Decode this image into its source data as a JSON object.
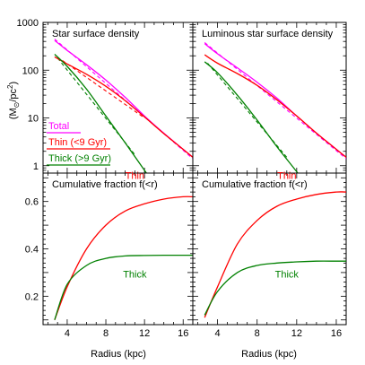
{
  "labels": {
    "y_axis_top": "(M",
    "y_axis_top_sub": "⊙",
    "y_axis_top_end": "/pc",
    "y_axis_top_sup": "2",
    "y_axis_top_close": ")",
    "x_axis": "Radius (kpc)"
  },
  "colors": {
    "total": "#ff00ff",
    "thin": "#ff0000",
    "thick": "#008000",
    "axis": "#000000"
  },
  "chart_data": [
    {
      "panel": "top-left",
      "type": "line",
      "title": "Star surface density",
      "xlim": [
        1.5,
        17.0
      ],
      "ylim": [
        0.7,
        1000
      ],
      "yscale": "log",
      "yticks": [
        1,
        10,
        100,
        1000
      ],
      "yticklabels": [
        "1",
        "10",
        "100",
        "1000"
      ],
      "xticks": [
        4,
        8,
        12,
        16
      ],
      "legend": {
        "placement": "left",
        "entries": [
          {
            "name": "Total",
            "color": "#ff00ff"
          },
          {
            "name": "Thin (<9 Gyr)",
            "color": "#ff0000"
          },
          {
            "name": "Thick (>9 Gyr)",
            "color": "#008000"
          }
        ]
      },
      "series": [
        {
          "key": "total",
          "color": "#ff00ff",
          "x": [
            2.7,
            4,
            6,
            8,
            10,
            12,
            14,
            16,
            17
          ],
          "y": [
            420,
            260,
            130,
            62,
            27,
            11,
            4.8,
            2.2,
            1.5
          ]
        },
        {
          "key": "thin",
          "color": "#ff0000",
          "x": [
            2.7,
            4,
            6,
            8,
            10,
            12,
            14,
            16,
            17
          ],
          "y": [
            190,
            135,
            82,
            46,
            23,
            10.5,
            4.7,
            2.2,
            1.5
          ]
        },
        {
          "key": "thick",
          "color": "#008000",
          "x": [
            2.7,
            4,
            6,
            8,
            10,
            12,
            13
          ],
          "y": [
            215,
            120,
            40,
            11,
            3,
            0.8,
            0.4
          ]
        }
      ],
      "dashed": [
        {
          "key": "total",
          "color": "#ff00ff",
          "x": [
            2.7,
            17
          ],
          "y": [
            450,
            1.4
          ]
        },
        {
          "key": "thin",
          "color": "#ff0000",
          "x": [
            3.5,
            12
          ],
          "y": [
            160,
            10
          ]
        },
        {
          "key": "thick",
          "color": "#008000",
          "x": [
            3,
            11
          ],
          "y": [
            180,
            1.7
          ]
        }
      ]
    },
    {
      "panel": "top-right",
      "type": "line",
      "title": "Luminous star surface density",
      "xlim": [
        1.5,
        17.0
      ],
      "ylim": [
        0.7,
        1000
      ],
      "yscale": "log",
      "xticks": [
        4,
        8,
        12,
        16
      ],
      "series": [
        {
          "key": "total",
          "color": "#ff00ff",
          "x": [
            2.7,
            4,
            6,
            8,
            10,
            12,
            14,
            16,
            17
          ],
          "y": [
            360,
            220,
            112,
            56,
            26,
            11,
            4.8,
            2.2,
            1.5
          ]
        },
        {
          "key": "thin",
          "color": "#ff0000",
          "x": [
            2.7,
            4,
            6,
            8,
            10,
            12,
            14,
            16,
            17
          ],
          "y": [
            210,
            140,
            85,
            48,
            24,
            11,
            4.8,
            2.2,
            1.5
          ]
        },
        {
          "key": "thick",
          "color": "#008000",
          "x": [
            2.7,
            4,
            6,
            8,
            10,
            12,
            13
          ],
          "y": [
            150,
            88,
            30,
            9,
            2.5,
            0.75,
            0.4
          ]
        }
      ],
      "dashed": [
        {
          "key": "total",
          "color": "#ff00ff",
          "x": [
            2.7,
            17
          ],
          "y": [
            380,
            1.4
          ]
        },
        {
          "key": "thick",
          "color": "#008000",
          "x": [
            3,
            11
          ],
          "y": [
            140,
            1.5
          ]
        }
      ]
    },
    {
      "panel": "bottom-left",
      "type": "line",
      "title": "Cumulative fraction f(<r)",
      "xlim": [
        1.5,
        17.0
      ],
      "ylim": [
        0.08,
        0.72
      ],
      "yticks": [
        0.2,
        0.4,
        0.6
      ],
      "yticklabels": [
        "0.2",
        "0.4",
        "0.6"
      ],
      "yticks_minor": [
        0.3,
        0.5,
        0.7
      ],
      "xticks": [
        4,
        8,
        12,
        16
      ],
      "xticklabels": [
        "4",
        "8",
        "12",
        "16"
      ],
      "xlabel": "Radius (kpc)",
      "series": [
        {
          "key": "thin",
          "color": "#ff0000",
          "label": "Thin",
          "x": [
            2.7,
            4,
            6,
            8,
            10,
            12,
            14,
            16,
            17
          ],
          "y": [
            0.1,
            0.24,
            0.4,
            0.5,
            0.56,
            0.59,
            0.61,
            0.62,
            0.62
          ]
        },
        {
          "key": "thick",
          "color": "#008000",
          "label": "Thick",
          "x": [
            2.7,
            4,
            6,
            8,
            10,
            12,
            14,
            16,
            17
          ],
          "y": [
            0.1,
            0.25,
            0.33,
            0.36,
            0.37,
            0.372,
            0.373,
            0.373,
            0.373
          ]
        }
      ]
    },
    {
      "panel": "bottom-right",
      "type": "line",
      "title": "Cumulative fraction f(<r)",
      "xlim": [
        1.5,
        17.0
      ],
      "ylim": [
        0.08,
        0.72
      ],
      "xticks": [
        4,
        8,
        12,
        16
      ],
      "xticklabels": [
        "4",
        "8",
        "12",
        "16"
      ],
      "xlabel": "Radius (kpc)",
      "series": [
        {
          "key": "thin",
          "color": "#ff0000",
          "label": "Thin",
          "x": [
            2.7,
            4,
            6,
            8,
            10,
            12,
            14,
            16,
            17
          ],
          "y": [
            0.11,
            0.24,
            0.42,
            0.52,
            0.58,
            0.61,
            0.63,
            0.64,
            0.64
          ]
        },
        {
          "key": "thick",
          "color": "#008000",
          "label": "Thick",
          "x": [
            2.7,
            4,
            6,
            8,
            10,
            12,
            14,
            16,
            17
          ],
          "y": [
            0.12,
            0.22,
            0.3,
            0.33,
            0.34,
            0.345,
            0.348,
            0.348,
            0.348
          ]
        }
      ]
    }
  ]
}
